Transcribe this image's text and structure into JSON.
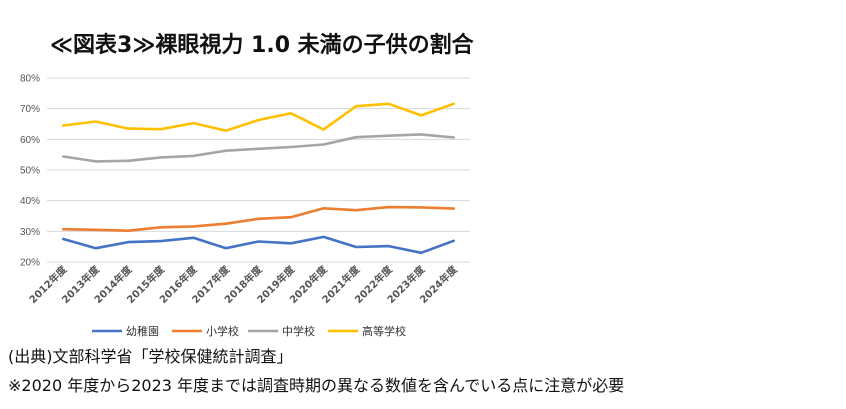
{
  "title": "≪図表3≫裸眼視力 1.0 未満の子供の割合",
  "source_note": "(出典)文部科学省「学校保健統計調査」",
  "footnote": "※2020 年度から2023 年度までは調査時期の異なる数値を含んでいる点に注意が必要",
  "colors": {
    "幼稚園": "#4472C4",
    "小学校": "#ED7D31",
    "中学校": "#A5A5A5",
    "高等学校": "#FFC000",
    "grid": "#d9d9d9"
  },
  "chart_data": {
    "type": "line",
    "title": "≪図表3≫裸眼視力 1.0 未満の子供の割合",
    "xlabel": "",
    "ylabel": "",
    "ylim": [
      20,
      80
    ],
    "yticks": [
      "20%",
      "30%",
      "40%",
      "50%",
      "60%",
      "70%",
      "80%"
    ],
    "grid": "horizontal",
    "legend_position": "bottom",
    "categories": [
      "2012年度",
      "2013年度",
      "2014年度",
      "2015年度",
      "2016年度",
      "2017年度",
      "2018年度",
      "2019年度",
      "2020年度",
      "2021年度",
      "2022年度",
      "2023年度",
      "2024年度"
    ],
    "series": [
      {
        "name": "幼稚園",
        "values": [
          27.5,
          24.5,
          26.5,
          26.8,
          27.9,
          24.5,
          26.7,
          26.1,
          28.2,
          24.9,
          25.2,
          23.0,
          26.9
        ]
      },
      {
        "name": "小学校",
        "values": [
          30.7,
          30.5,
          30.2,
          31.3,
          31.6,
          32.5,
          34.1,
          34.6,
          37.5,
          36.9,
          37.9,
          37.8,
          37.4
        ]
      },
      {
        "name": "中学校",
        "values": [
          54.4,
          52.8,
          53.0,
          54.1,
          54.6,
          56.3,
          56.9,
          57.5,
          58.3,
          60.7,
          61.2,
          61.6,
          60.6
        ]
      },
      {
        "name": "高等学校",
        "values": [
          64.5,
          65.8,
          63.5,
          63.3,
          65.3,
          62.8,
          66.3,
          68.5,
          63.2,
          70.8,
          71.6,
          67.8,
          71.6
        ]
      }
    ]
  }
}
